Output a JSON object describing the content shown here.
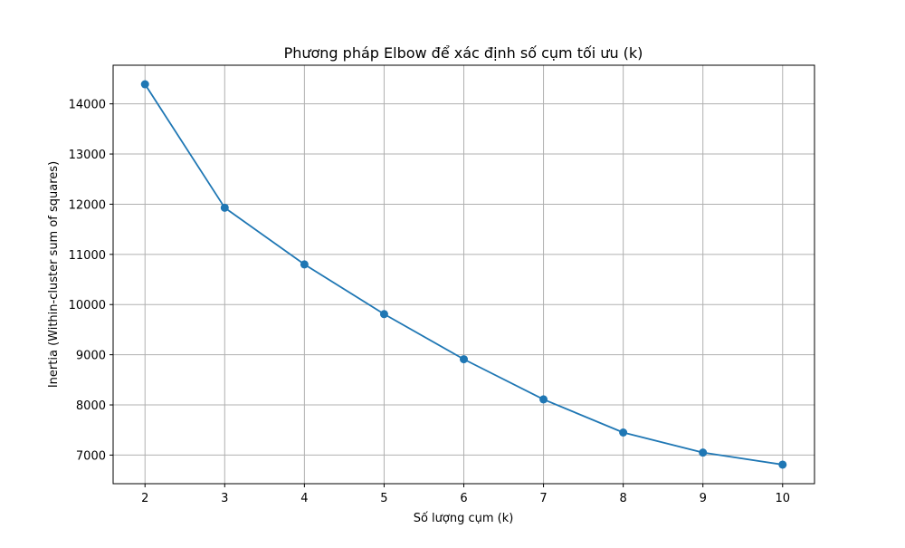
{
  "chart_data": {
    "type": "line",
    "title": "Phương pháp Elbow để xác định số cụm tối ưu (k)",
    "xlabel": "Số lượng cụm (k)",
    "ylabel": "Inertia (Within-cluster sum of squares)",
    "x": [
      2,
      3,
      4,
      5,
      6,
      7,
      8,
      9,
      10
    ],
    "series": [
      {
        "values": [
          14390,
          11930,
          10800,
          9810,
          8910,
          8110,
          7450,
          7050,
          6810
        ]
      }
    ],
    "xticks": [
      "2",
      "3",
      "4",
      "5",
      "6",
      "7",
      "8",
      "9",
      "10"
    ],
    "yticks": [
      "7000",
      "8000",
      "9000",
      "10000",
      "11000",
      "12000",
      "13000",
      "14000"
    ],
    "xlim": [
      1.6,
      10.4
    ],
    "ylim": [
      6430,
      14770
    ],
    "grid": true,
    "marker": "circle",
    "colors": {
      "line": "#1f77b4",
      "grid": "#b0b0b0",
      "axes": "#000000"
    }
  }
}
